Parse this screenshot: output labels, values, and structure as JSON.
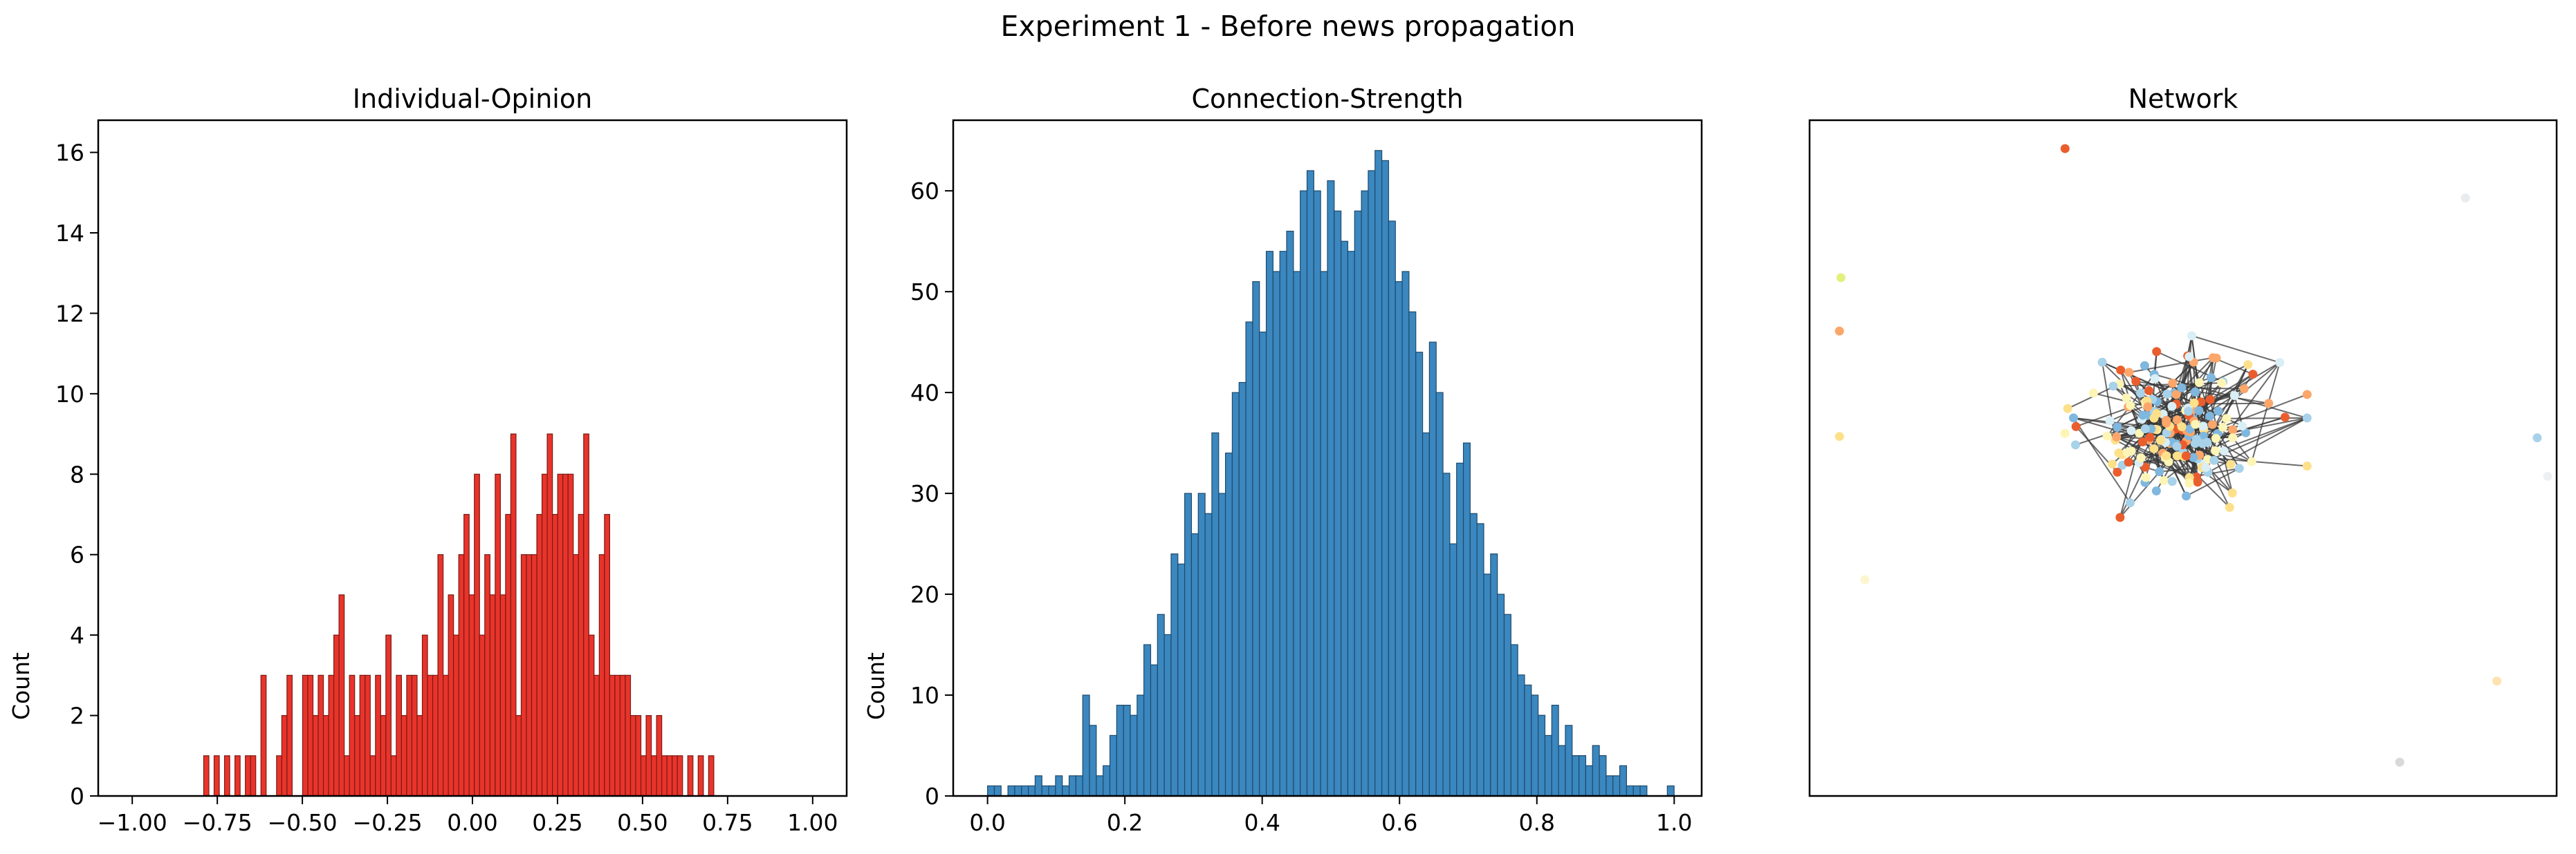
{
  "figure": {
    "suptitle": "Experiment 1 - Before news propagation"
  },
  "chart_data": [
    {
      "type": "bar",
      "title": "Individual-Opinion",
      "xlabel": "",
      "ylabel": "Count",
      "xlim": [
        -1.1,
        1.1
      ],
      "ylim": [
        0,
        16.8
      ],
      "xticks": [
        "−1.00",
        "−0.75",
        "−0.50",
        "−0.25",
        "0.00",
        "0.25",
        "0.50",
        "0.75",
        "1.00"
      ],
      "xtick_values": [
        -1.0,
        -0.75,
        -0.5,
        -0.25,
        0.0,
        0.25,
        0.5,
        0.75,
        1.0
      ],
      "yticks": [
        "0",
        "2",
        "4",
        "6",
        "8",
        "10",
        "12",
        "14",
        "16"
      ],
      "ytick_values": [
        0,
        2,
        4,
        6,
        8,
        10,
        12,
        14,
        16
      ],
      "bin_start": -0.79,
      "bin_width": 0.0153,
      "values": [
        1,
        0,
        1,
        0,
        1,
        0,
        1,
        0,
        1,
        1,
        0,
        3,
        0,
        0,
        1,
        2,
        3,
        0,
        0,
        3,
        3,
        2,
        3,
        2,
        3,
        4,
        5,
        1,
        3,
        2,
        3,
        3,
        1,
        3,
        2,
        4,
        1,
        3,
        2,
        3,
        3,
        2,
        4,
        3,
        3,
        6,
        3,
        5,
        4,
        6,
        7,
        5,
        8,
        4,
        6,
        5,
        8,
        5,
        7,
        9,
        2,
        6,
        6,
        6,
        7,
        8,
        9,
        7,
        8,
        8,
        8,
        6,
        7,
        9,
        4,
        3,
        6,
        7,
        3,
        3,
        3,
        3,
        2,
        2,
        1,
        2,
        1,
        2,
        1,
        1,
        1,
        1,
        0,
        1,
        0,
        1,
        0,
        1
      ],
      "bar_color": "#e8342b",
      "edge_color": "#7a1a14",
      "grid": false
    },
    {
      "type": "bar",
      "title": "Connection-Strength",
      "xlabel": "",
      "ylabel": "Count",
      "xlim": [
        -0.05,
        1.04
      ],
      "ylim": [
        0,
        67
      ],
      "xticks": [
        "0.0",
        "0.2",
        "0.4",
        "0.6",
        "0.8",
        "1.0"
      ],
      "xtick_values": [
        0,
        0.2,
        0.4,
        0.6,
        0.8,
        1.0
      ],
      "yticks": [
        "0",
        "10",
        "20",
        "30",
        "40",
        "50",
        "60"
      ],
      "ytick_values": [
        0,
        10,
        20,
        30,
        40,
        50,
        60
      ],
      "bin_start": 0.0,
      "bin_width": 0.0099,
      "values": [
        1,
        1,
        0,
        1,
        1,
        1,
        1,
        2,
        1,
        1,
        2,
        1,
        2,
        2,
        10,
        7,
        2,
        3,
        6,
        9,
        9,
        8,
        10,
        15,
        13,
        18,
        16,
        24,
        23,
        30,
        26,
        30,
        28,
        36,
        30,
        34,
        40,
        41,
        47,
        51,
        46,
        54,
        52,
        54,
        56,
        52,
        60,
        62,
        60,
        52,
        61,
        58,
        55,
        54,
        58,
        60,
        62,
        64,
        63,
        57,
        51,
        52,
        48,
        44,
        36,
        45,
        40,
        32,
        25,
        33,
        35,
        28,
        27,
        22,
        24,
        20,
        18,
        15,
        12,
        11,
        10,
        8,
        6,
        9,
        5,
        7,
        4,
        4,
        3,
        5,
        4,
        2,
        2,
        3,
        1,
        1,
        1,
        0,
        0,
        0,
        1
      ],
      "bar_color": "#3b87bf",
      "edge_color": "#1f4a6b",
      "grid": false
    },
    {
      "type": "scatter",
      "title": "Network",
      "xlabel": "",
      "ylabel": "",
      "xlim": [
        0,
        1
      ],
      "ylim": [
        0,
        1
      ],
      "axes_visible": false,
      "palette": [
        "#ea5e2e",
        "#fca66a",
        "#fde08a",
        "#fdf5b5",
        "#d9eef5",
        "#a7d2e9",
        "#7fb7de"
      ],
      "edge_color": "#3a3a3a",
      "cluster_center": [
        0.496,
        0.541
      ],
      "cluster_radius": [
        0.17,
        0.14
      ],
      "cluster_nodes": 180,
      "cluster_edges": 260,
      "isolated_nodes": [
        {
          "x": 0.342,
          "y": 0.958,
          "color": "#ea5e2e"
        },
        {
          "x": 0.042,
          "y": 0.767,
          "color": "#e3f080"
        },
        {
          "x": 0.04,
          "y": 0.688,
          "color": "#fca66a"
        },
        {
          "x": 0.04,
          "y": 0.532,
          "color": "#fde08a"
        },
        {
          "x": 0.074,
          "y": 0.32,
          "color": "#fdf5d0"
        },
        {
          "x": 0.878,
          "y": 0.885,
          "color": "#e8ecef"
        },
        {
          "x": 0.974,
          "y": 0.53,
          "color": "#a7d2e9"
        },
        {
          "x": 0.988,
          "y": 0.473,
          "color": "#edf0f2"
        },
        {
          "x": 0.92,
          "y": 0.17,
          "color": "#fde3b0"
        },
        {
          "x": 0.79,
          "y": 0.05,
          "color": "#d9d9d9"
        }
      ]
    }
  ]
}
